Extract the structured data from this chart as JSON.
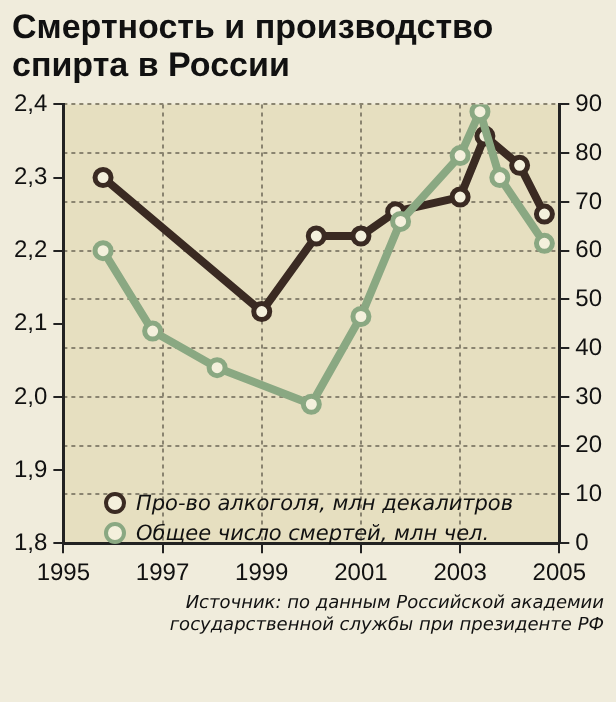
{
  "chart_data": {
    "type": "line",
    "title": "Смертность и производство спирта в России",
    "xlim": [
      1995,
      2005
    ],
    "xticks": [
      1995,
      1997,
      1999,
      2001,
      2003,
      2005
    ],
    "ylim": [
      1.8,
      2.4
    ],
    "yticks": [
      {
        "value": 1.8,
        "label": "1,8"
      },
      {
        "value": 1.9,
        "label": "1,9"
      },
      {
        "value": 2.0,
        "label": "2,0"
      },
      {
        "value": 2.1,
        "label": "2,1"
      },
      {
        "value": 2.2,
        "label": "2,2"
      },
      {
        "value": 2.3,
        "label": "2,3"
      },
      {
        "value": 2.4,
        "label": "2,4"
      }
    ],
    "y2lim": [
      0,
      90
    ],
    "y2ticks": [
      0,
      10,
      20,
      30,
      40,
      50,
      60,
      70,
      80,
      90
    ],
    "grid": true,
    "legend": "bottom left",
    "marker": "circle",
    "line_style": "solid",
    "series": [
      {
        "name": "Про-во алкоголя, млн декалитров",
        "color": "#3a2a22",
        "axis": "y2",
        "x": [
          1995.8,
          1999.0,
          2000.1,
          2001.0,
          2001.7,
          2003.0,
          2003.5,
          2004.2,
          2004.7
        ],
        "values": [
          75,
          47.5,
          63,
          63,
          68,
          71,
          83.5,
          77.5,
          67.5
        ]
      },
      {
        "name": "Общее число смертей, млн чел.",
        "color": "#8aa882",
        "axis": "y",
        "x": [
          1995.8,
          1996.8,
          1998.1,
          2000.0,
          2001.0,
          2001.8,
          2003.0,
          2003.4,
          2003.8,
          2004.7
        ],
        "values": [
          2.2,
          2.09,
          2.04,
          1.99,
          2.11,
          2.24,
          2.33,
          2.39,
          2.3,
          2.21
        ]
      }
    ],
    "annotations": [
      "Источник: по данным Российской академии государственной службы при президенте РФ"
    ]
  }
}
